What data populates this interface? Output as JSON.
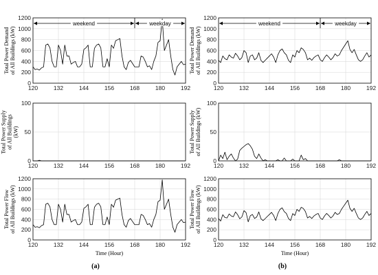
{
  "figure": {
    "panel_labels": [
      "(a)",
      "(b)"
    ],
    "periods": [
      "weekend",
      "weekday"
    ],
    "period_boundaries": [
      120,
      168,
      192
    ]
  },
  "chart_data": [
    {
      "type": "line",
      "column": "a",
      "title": "",
      "xlabel": "",
      "ylabel": [
        "Total Power Demand",
        "of All Buildings (kW)"
      ],
      "xlim": [
        120,
        192
      ],
      "ylim": [
        0,
        1200
      ],
      "xticks": [
        120,
        132,
        144,
        156,
        168,
        180,
        192
      ],
      "yticks": [
        0,
        200,
        400,
        600,
        800,
        1000,
        1200
      ],
      "grid": true,
      "x": [
        120,
        121,
        122,
        123,
        124,
        125,
        126,
        127,
        128,
        129,
        130,
        131,
        132,
        133,
        134,
        135,
        136,
        137,
        138,
        139,
        140,
        141,
        142,
        143,
        144,
        145,
        146,
        147,
        148,
        149,
        150,
        151,
        152,
        153,
        154,
        155,
        156,
        157,
        158,
        159,
        160,
        161,
        162,
        163,
        164,
        165,
        166,
        167,
        168,
        169,
        170,
        171,
        172,
        173,
        174,
        175,
        176,
        177,
        178,
        179,
        180,
        181,
        182,
        183,
        184,
        185,
        186,
        187,
        188,
        189,
        190,
        191,
        192
      ],
      "values": [
        300,
        250,
        260,
        240,
        280,
        300,
        700,
        720,
        650,
        400,
        300,
        300,
        700,
        600,
        350,
        700,
        500,
        500,
        350,
        380,
        400,
        300,
        300,
        350,
        620,
        650,
        700,
        300,
        300,
        640,
        700,
        720,
        650,
        300,
        300,
        450,
        300,
        700,
        640,
        780,
        800,
        820,
        500,
        300,
        250,
        380,
        420,
        360,
        300,
        300,
        300,
        500,
        480,
        400,
        300,
        320,
        250,
        400,
        500,
        750,
        780,
        1180,
        600,
        700,
        800,
        500,
        250,
        150,
        300,
        350,
        400,
        340,
        350
      ]
    },
    {
      "type": "line",
      "column": "a",
      "title": "",
      "xlabel": "",
      "ylabel": [
        "Total Power Supply",
        "of All Buildings",
        "(kW)"
      ],
      "xlim": [
        120,
        192
      ],
      "ylim": [
        0,
        100
      ],
      "xticks": [
        120,
        132,
        144,
        156,
        168,
        180,
        192
      ],
      "yticks": [
        0,
        50,
        100
      ],
      "grid": true,
      "x": [
        120,
        121,
        122,
        123,
        124,
        125,
        126,
        127,
        128,
        129,
        130,
        131,
        132,
        133,
        134,
        135,
        136,
        137,
        138,
        139,
        140,
        141,
        142,
        143,
        144,
        145,
        146,
        147,
        148,
        149,
        150,
        151,
        152,
        153,
        154,
        155,
        156,
        157,
        158,
        159,
        160,
        161,
        162,
        163,
        164,
        165,
        166,
        167,
        168,
        169,
        170,
        171,
        172,
        173,
        174,
        175,
        176,
        177,
        178,
        179,
        180,
        181,
        182,
        183,
        184,
        185,
        186,
        187,
        188,
        189,
        190,
        191,
        192
      ],
      "values": [
        0,
        0,
        0,
        1,
        0,
        0,
        0,
        0,
        0,
        0,
        0,
        0,
        0,
        0,
        0,
        0,
        0,
        0,
        0,
        0,
        0,
        0,
        0,
        0,
        0,
        0,
        0,
        0,
        0,
        0,
        0,
        0,
        0,
        0,
        0,
        0,
        0,
        0,
        0,
        0,
        0,
        0,
        0,
        0,
        0,
        0,
        0,
        0,
        0,
        0,
        0,
        0,
        0,
        0,
        0,
        0,
        0,
        0,
        0,
        0,
        0,
        0,
        0,
        0,
        0,
        0,
        0,
        0,
        0,
        0,
        0,
        0,
        0
      ]
    },
    {
      "type": "line",
      "column": "a",
      "title": "",
      "xlabel": "Time (Hour)",
      "ylabel": [
        "Total Power Flow",
        "of All Buildings (kW)"
      ],
      "xlim": [
        120,
        192
      ],
      "ylim": [
        0,
        1200
      ],
      "xticks": [
        120,
        132,
        144,
        156,
        168,
        180,
        192
      ],
      "yticks": [
        0,
        200,
        400,
        600,
        800,
        1000,
        1200
      ],
      "grid": true,
      "x": [
        120,
        121,
        122,
        123,
        124,
        125,
        126,
        127,
        128,
        129,
        130,
        131,
        132,
        133,
        134,
        135,
        136,
        137,
        138,
        139,
        140,
        141,
        142,
        143,
        144,
        145,
        146,
        147,
        148,
        149,
        150,
        151,
        152,
        153,
        154,
        155,
        156,
        157,
        158,
        159,
        160,
        161,
        162,
        163,
        164,
        165,
        166,
        167,
        168,
        169,
        170,
        171,
        172,
        173,
        174,
        175,
        176,
        177,
        178,
        179,
        180,
        181,
        182,
        183,
        184,
        185,
        186,
        187,
        188,
        189,
        190,
        191,
        192
      ],
      "values": [
        300,
        250,
        260,
        240,
        280,
        300,
        700,
        720,
        650,
        400,
        300,
        300,
        700,
        600,
        350,
        700,
        500,
        500,
        350,
        380,
        400,
        300,
        300,
        350,
        620,
        650,
        700,
        300,
        300,
        640,
        700,
        720,
        650,
        300,
        300,
        450,
        300,
        700,
        640,
        780,
        800,
        820,
        500,
        300,
        250,
        380,
        420,
        360,
        300,
        300,
        300,
        500,
        480,
        400,
        300,
        320,
        250,
        400,
        500,
        750,
        780,
        1180,
        600,
        700,
        800,
        500,
        250,
        150,
        300,
        350,
        400,
        340,
        350
      ]
    },
    {
      "type": "line",
      "column": "b",
      "title": "",
      "xlabel": "",
      "ylabel": [
        "Total Power Demand",
        "of All Buildings (kW)"
      ],
      "xlim": [
        120,
        192
      ],
      "ylim": [
        0,
        1200
      ],
      "xticks": [
        120,
        132,
        144,
        156,
        168,
        180,
        192
      ],
      "yticks": [
        0,
        200,
        400,
        600,
        800,
        1000,
        1200
      ],
      "grid": true,
      "x": [
        120,
        121,
        122,
        123,
        124,
        125,
        126,
        127,
        128,
        129,
        130,
        131,
        132,
        133,
        134,
        135,
        136,
        137,
        138,
        139,
        140,
        141,
        142,
        143,
        144,
        145,
        146,
        147,
        148,
        149,
        150,
        151,
        152,
        153,
        154,
        155,
        156,
        157,
        158,
        159,
        160,
        161,
        162,
        163,
        164,
        165,
        166,
        167,
        168,
        169,
        170,
        171,
        172,
        173,
        174,
        175,
        176,
        177,
        178,
        179,
        180,
        181,
        182,
        183,
        184,
        185,
        186,
        187,
        188,
        189,
        190,
        191,
        192
      ],
      "values": [
        420,
        380,
        500,
        450,
        430,
        520,
        480,
        460,
        550,
        500,
        430,
        470,
        600,
        560,
        380,
        500,
        520,
        430,
        460,
        560,
        420,
        380,
        420,
        460,
        500,
        540,
        480,
        380,
        520,
        600,
        630,
        560,
        520,
        420,
        380,
        520,
        480,
        600,
        560,
        650,
        620,
        560,
        430,
        460,
        420,
        470,
        500,
        520,
        430,
        400,
        470,
        520,
        480,
        430,
        470,
        540,
        500,
        520,
        600,
        660,
        720,
        780,
        620,
        560,
        620,
        520,
        430,
        400,
        430,
        500,
        560,
        480,
        520
      ]
    },
    {
      "type": "line",
      "column": "b",
      "title": "",
      "xlabel": "",
      "ylabel": [
        "Total Power Supply",
        "of All Buildings (kW)"
      ],
      "xlim": [
        120,
        192
      ],
      "ylim": [
        0,
        100
      ],
      "xticks": [
        120,
        132,
        144,
        156,
        168,
        180,
        192
      ],
      "yticks": [
        0,
        50,
        100
      ],
      "grid": true,
      "x": [
        120,
        121,
        122,
        123,
        124,
        125,
        126,
        127,
        128,
        129,
        130,
        131,
        132,
        133,
        134,
        135,
        136,
        137,
        138,
        139,
        140,
        141,
        142,
        143,
        144,
        145,
        146,
        147,
        148,
        149,
        150,
        151,
        152,
        153,
        154,
        155,
        156,
        157,
        158,
        159,
        160,
        161,
        162,
        163,
        164,
        165,
        166,
        167,
        168,
        169,
        170,
        171,
        172,
        173,
        174,
        175,
        176,
        177,
        178,
        179,
        180,
        181,
        182,
        183,
        184,
        185,
        186,
        187,
        188,
        189,
        190,
        191,
        192
      ],
      "values": [
        0,
        10,
        4,
        15,
        2,
        8,
        12,
        5,
        0,
        3,
        18,
        22,
        25,
        28,
        30,
        26,
        20,
        8,
        4,
        12,
        5,
        0,
        2,
        0,
        0,
        0,
        0,
        0,
        2,
        0,
        0,
        5,
        0,
        0,
        0,
        3,
        0,
        0,
        0,
        10,
        2,
        4,
        0,
        0,
        0,
        0,
        0,
        0,
        0,
        0,
        0,
        0,
        0,
        0,
        0,
        0,
        0,
        2,
        0,
        0,
        0,
        0,
        0,
        0,
        0,
        0,
        0,
        0,
        0,
        0,
        0,
        0,
        0
      ]
    },
    {
      "type": "line",
      "column": "b",
      "title": "",
      "xlabel": "Time (Hour)",
      "ylabel": [
        "Total Power Flow",
        "of All Buildings (kW)"
      ],
      "xlim": [
        120,
        192
      ],
      "ylim": [
        0,
        1200
      ],
      "xticks": [
        120,
        132,
        144,
        156,
        168,
        180,
        192
      ],
      "yticks": [
        0,
        200,
        400,
        600,
        800,
        1000,
        1200
      ],
      "grid": true,
      "x": [
        120,
        121,
        122,
        123,
        124,
        125,
        126,
        127,
        128,
        129,
        130,
        131,
        132,
        133,
        134,
        135,
        136,
        137,
        138,
        139,
        140,
        141,
        142,
        143,
        144,
        145,
        146,
        147,
        148,
        149,
        150,
        151,
        152,
        153,
        154,
        155,
        156,
        157,
        158,
        159,
        160,
        161,
        162,
        163,
        164,
        165,
        166,
        167,
        168,
        169,
        170,
        171,
        172,
        173,
        174,
        175,
        176,
        177,
        178,
        179,
        180,
        181,
        182,
        183,
        184,
        185,
        186,
        187,
        188,
        189,
        190,
        191,
        192
      ],
      "values": [
        420,
        370,
        495,
        440,
        430,
        510,
        470,
        455,
        550,
        495,
        415,
        450,
        575,
        535,
        355,
        475,
        500,
        420,
        450,
        550,
        415,
        380,
        418,
        460,
        500,
        540,
        480,
        380,
        518,
        600,
        630,
        555,
        520,
        420,
        380,
        517,
        480,
        600,
        560,
        640,
        618,
        556,
        430,
        460,
        420,
        470,
        500,
        520,
        430,
        400,
        470,
        520,
        480,
        430,
        470,
        540,
        500,
        518,
        600,
        660,
        720,
        780,
        620,
        560,
        620,
        520,
        430,
        400,
        430,
        500,
        560,
        480,
        520
      ]
    }
  ]
}
